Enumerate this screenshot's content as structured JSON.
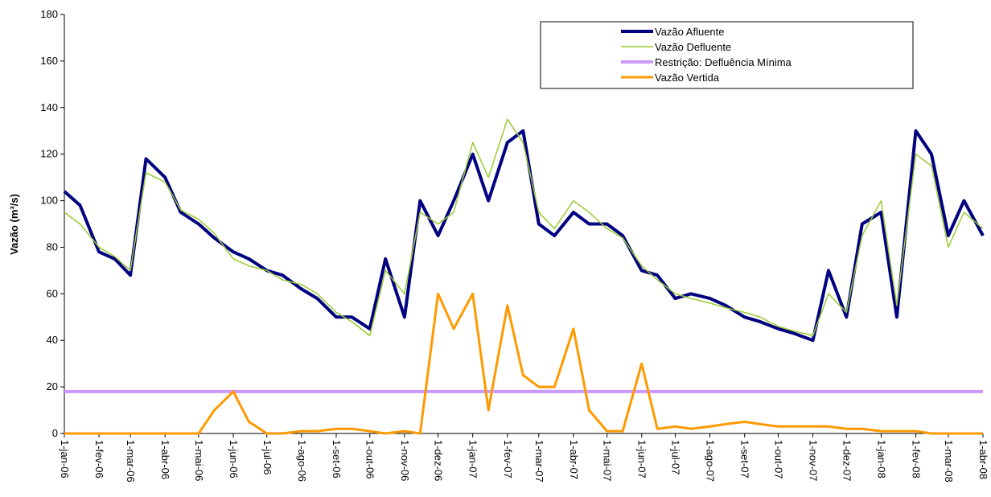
{
  "chart_data": {
    "type": "line",
    "ylabel": "Vazão (m³/s)",
    "x": [
      "2006-01-01",
      "2006-01-15",
      "2006-02-01",
      "2006-02-15",
      "2006-03-01",
      "2006-03-15",
      "2006-04-01",
      "2006-04-15",
      "2006-05-01",
      "2006-05-15",
      "2006-06-01",
      "2006-06-15",
      "2006-07-01",
      "2006-07-15",
      "2006-08-01",
      "2006-08-15",
      "2006-09-01",
      "2006-09-15",
      "2006-10-01",
      "2006-10-15",
      "2006-11-01",
      "2006-11-15",
      "2006-12-01",
      "2006-12-15",
      "2007-01-01",
      "2007-01-15",
      "2007-02-01",
      "2007-02-15",
      "2007-03-01",
      "2007-03-15",
      "2007-04-01",
      "2007-04-15",
      "2007-05-01",
      "2007-05-15",
      "2007-06-01",
      "2007-06-15",
      "2007-07-01",
      "2007-07-15",
      "2007-08-01",
      "2007-08-15",
      "2007-09-01",
      "2007-09-15",
      "2007-10-01",
      "2007-10-15",
      "2007-11-01",
      "2007-11-15",
      "2007-12-01",
      "2007-12-15",
      "2008-01-01",
      "2008-01-15",
      "2008-02-01",
      "2008-02-15",
      "2008-03-01",
      "2008-03-15",
      "2008-04-01"
    ],
    "series": [
      {
        "name": "Vazão Afluente",
        "color": "#000080",
        "width": 4,
        "values": [
          104,
          98,
          78,
          75,
          68,
          118,
          110,
          95,
          90,
          84,
          78,
          75,
          70,
          68,
          62,
          58,
          50,
          50,
          45,
          75,
          50,
          100,
          85,
          100,
          120,
          100,
          125,
          130,
          90,
          85,
          95,
          90,
          90,
          85,
          70,
          68,
          58,
          60,
          58,
          55,
          50,
          48,
          45,
          43,
          40,
          70,
          50,
          90,
          95,
          50,
          130,
          120,
          85,
          100,
          85
        ]
      },
      {
        "name": "Vazão Defluente",
        "color": "#99cc33",
        "width": 1.5,
        "values": [
          95,
          90,
          80,
          76,
          70,
          112,
          108,
          96,
          92,
          86,
          75,
          72,
          70,
          66,
          64,
          60,
          52,
          48,
          42,
          70,
          60,
          95,
          90,
          95,
          125,
          110,
          135,
          125,
          95,
          88,
          100,
          95,
          88,
          84,
          72,
          66,
          60,
          58,
          56,
          54,
          52,
          50,
          46,
          44,
          42,
          60,
          52,
          85,
          100,
          55,
          120,
          115,
          80,
          95,
          88
        ]
      },
      {
        "name": "Restrição: Defluência Mínima",
        "color": "#cc99ff",
        "width": 4,
        "values": [
          18,
          18,
          18,
          18,
          18,
          18,
          18,
          18,
          18,
          18,
          18,
          18,
          18,
          18,
          18,
          18,
          18,
          18,
          18,
          18,
          18,
          18,
          18,
          18,
          18,
          18,
          18,
          18,
          18,
          18,
          18,
          18,
          18,
          18,
          18,
          18,
          18,
          18,
          18,
          18,
          18,
          18,
          18,
          18,
          18,
          18,
          18,
          18,
          18,
          18,
          18,
          18,
          18,
          18,
          18
        ]
      },
      {
        "name": "Vazão Vertida",
        "color": "#ff9900",
        "width": 3,
        "values": [
          0,
          0,
          0,
          0,
          0,
          0,
          0,
          0,
          0,
          10,
          18,
          5,
          0,
          0,
          1,
          1,
          2,
          2,
          1,
          0,
          1,
          0,
          60,
          45,
          60,
          10,
          55,
          25,
          20,
          20,
          45,
          10,
          1,
          1,
          30,
          2,
          3,
          2,
          3,
          4,
          5,
          4,
          3,
          3,
          3,
          3,
          2,
          2,
          1,
          1,
          1,
          0,
          0,
          0,
          0
        ]
      }
    ],
    "ylim": [
      0,
      180
    ],
    "yticks": [
      0,
      20,
      40,
      60,
      80,
      100,
      120,
      140,
      160,
      180
    ],
    "xlim": [
      "2006-01-01",
      "2008-04-01"
    ],
    "xticks": [
      {
        "value": "2006-01-01",
        "label": "1-jan-06"
      },
      {
        "value": "2006-02-01",
        "label": "1-fev-06"
      },
      {
        "value": "2006-03-01",
        "label": "1-mar-06"
      },
      {
        "value": "2006-04-01",
        "label": "1-abr-06"
      },
      {
        "value": "2006-05-01",
        "label": "1-mai-06"
      },
      {
        "value": "2006-06-01",
        "label": "1-jun-06"
      },
      {
        "value": "2006-07-01",
        "label": "1-jul-06"
      },
      {
        "value": "2006-08-01",
        "label": "1-ago-06"
      },
      {
        "value": "2006-09-01",
        "label": "1-set-06"
      },
      {
        "value": "2006-10-01",
        "label": "1-out-06"
      },
      {
        "value": "2006-11-01",
        "label": "1-nov-06"
      },
      {
        "value": "2006-12-01",
        "label": "1-dez-06"
      },
      {
        "value": "2007-01-01",
        "label": "1-jan-07"
      },
      {
        "value": "2007-02-01",
        "label": "1-fev-07"
      },
      {
        "value": "2007-03-01",
        "label": "1-mar-07"
      },
      {
        "value": "2007-04-01",
        "label": "1-abr-07"
      },
      {
        "value": "2007-05-01",
        "label": "1-mai-07"
      },
      {
        "value": "2007-06-01",
        "label": "1-jun-07"
      },
      {
        "value": "2007-07-01",
        "label": "1-jul-07"
      },
      {
        "value": "2007-08-01",
        "label": "1-ago-07"
      },
      {
        "value": "2007-09-01",
        "label": "1-set-07"
      },
      {
        "value": "2007-10-01",
        "label": "1-out-07"
      },
      {
        "value": "2007-11-01",
        "label": "1-nov-07"
      },
      {
        "value": "2007-12-01",
        "label": "1-dez-07"
      },
      {
        "value": "2008-01-01",
        "label": "1-jan-08"
      },
      {
        "value": "2008-02-01",
        "label": "1-fev-08"
      },
      {
        "value": "2008-03-01",
        "label": "1-mar-08"
      },
      {
        "value": "2008-04-01",
        "label": "1-abr-08"
      }
    ],
    "grid": false,
    "legend": "top-right"
  }
}
